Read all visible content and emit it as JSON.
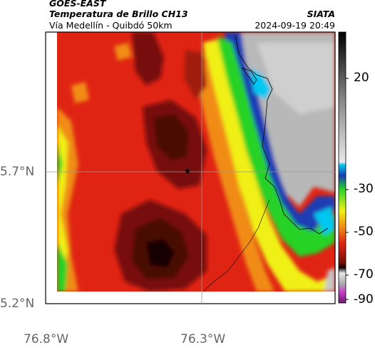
{
  "header": {
    "satellite": "GOES-EAST",
    "product": "Temperatura de Brillo CH13",
    "route": "Vía Medellín - Quibdó 50km",
    "org": "SIATA",
    "datetime": "2024-09-19 20:49"
  },
  "axes": {
    "lat_labels": [
      "5.7°N",
      "5.2°N"
    ],
    "lon_labels": [
      "76.8°W",
      "76.3°W"
    ]
  },
  "colorbar": {
    "ticks": [
      "20",
      "-30",
      "-50",
      "-70",
      "-90"
    ]
  },
  "colors": {
    "warm_gray": "#b8b8b8",
    "cyan": "#00c8f0",
    "blue": "#1a3cb4",
    "green": "#28d228",
    "yellow": "#f0f014",
    "orange": "#f08c14",
    "red": "#e02414",
    "dark_red": "#781008",
    "black": "#140404",
    "magenta": "#c83cc8"
  }
}
